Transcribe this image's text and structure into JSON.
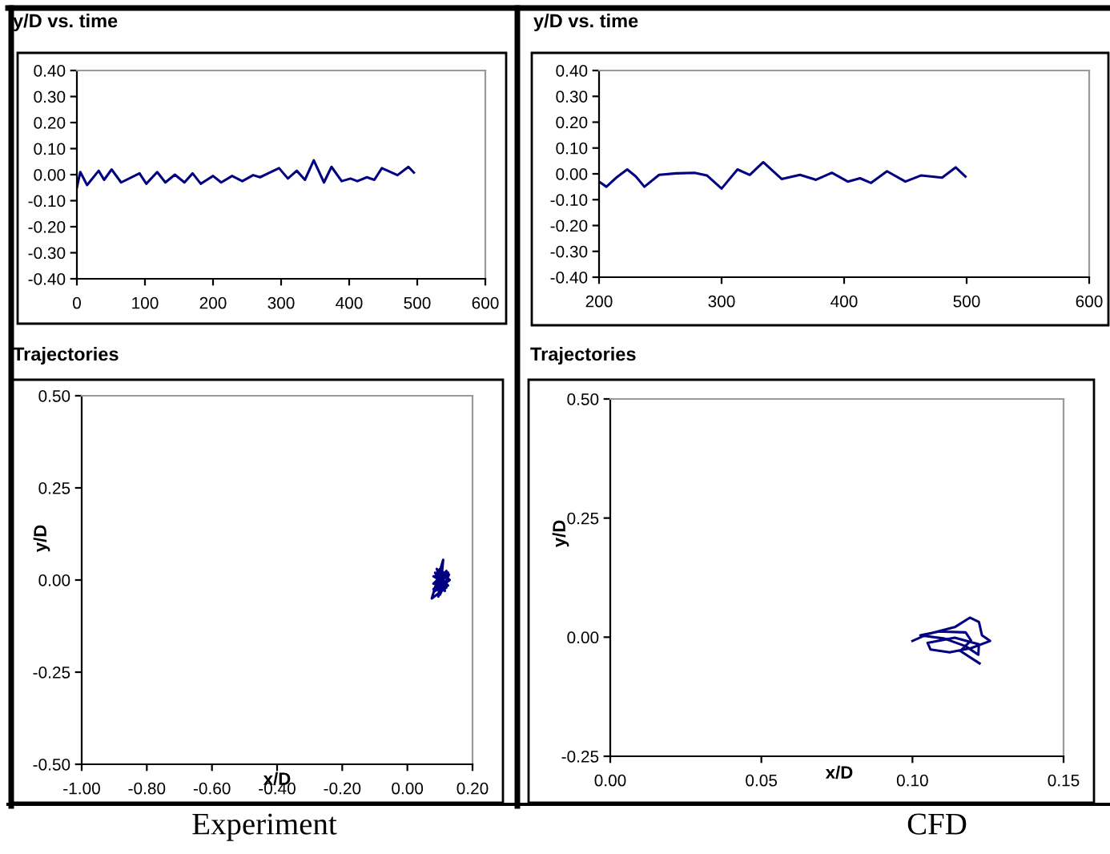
{
  "chart_data": [
    {
      "type": "line",
      "title": "y/D vs. time",
      "xlim": [
        0,
        600
      ],
      "xticks": [
        0,
        100,
        200,
        300,
        400,
        500,
        600
      ],
      "ylim": [
        -0.4,
        0.4
      ],
      "yticks": [
        {
          "value": -0.4,
          "label": "-0.40"
        },
        {
          "value": -0.3,
          "label": "-0.30"
        },
        {
          "value": -0.2,
          "label": "-0.20"
        },
        {
          "value": -0.1,
          "label": "-0.10"
        },
        {
          "value": 0,
          "label": "0.00"
        },
        {
          "value": 0.1,
          "label": "0.10"
        },
        {
          "value": 0.2,
          "label": "0.20"
        },
        {
          "value": 0.3,
          "label": "0.30"
        },
        {
          "value": 0.4,
          "label": "0.40"
        }
      ],
      "grid": false,
      "series": [
        {
          "color": "#000080",
          "x": [
            0,
            5,
            15,
            32,
            40,
            51,
            65,
            92,
            102,
            118,
            130,
            144,
            158,
            170,
            182,
            200,
            212,
            228,
            243,
            259,
            269,
            281,
            297,
            310,
            323,
            335,
            348,
            363,
            374,
            389,
            402,
            412,
            426,
            437,
            448,
            471,
            487,
            495
          ],
          "values": [
            -0.05,
            0.01,
            -0.04,
            0.015,
            -0.02,
            0.02,
            -0.03,
            0.005,
            -0.035,
            0.01,
            -0.03,
            0.0,
            -0.03,
            0.005,
            -0.035,
            -0.005,
            -0.03,
            -0.005,
            -0.025,
            -0.002,
            -0.01,
            0.005,
            0.025,
            -0.015,
            0.015,
            -0.02,
            0.055,
            -0.03,
            0.03,
            -0.025,
            -0.015,
            -0.025,
            -0.01,
            -0.02,
            0.025,
            -0.002,
            0.03,
            0.008
          ]
        }
      ]
    },
    {
      "type": "line",
      "title": "y/D vs. time",
      "xlim": [
        200,
        600
      ],
      "xticks": [
        200,
        300,
        400,
        500,
        600
      ],
      "ylim": [
        -0.4,
        0.4
      ],
      "yticks": [
        {
          "value": -0.4,
          "label": "-0.40"
        },
        {
          "value": -0.3,
          "label": "-0.30"
        },
        {
          "value": -0.2,
          "label": "-0.20"
        },
        {
          "value": -0.1,
          "label": "-0.10"
        },
        {
          "value": 0,
          "label": "0.00"
        },
        {
          "value": 0.1,
          "label": "0.10"
        },
        {
          "value": 0.2,
          "label": "0.20"
        },
        {
          "value": 0.3,
          "label": "0.30"
        },
        {
          "value": 0.4,
          "label": "0.40"
        }
      ],
      "grid": false,
      "series": [
        {
          "color": "#000080",
          "x": [
            200,
            206,
            214,
            223,
            230,
            237,
            249,
            263,
            278,
            288,
            300,
            313,
            323,
            334,
            349,
            364,
            377,
            390,
            403,
            413,
            422,
            435,
            450,
            463,
            480,
            491,
            499
          ],
          "values": [
            -0.03,
            -0.05,
            -0.015,
            0.017,
            -0.01,
            -0.05,
            -0.004,
            0.002,
            0.004,
            -0.006,
            -0.057,
            0.017,
            -0.004,
            0.045,
            -0.02,
            -0.004,
            -0.023,
            0.004,
            -0.03,
            -0.017,
            -0.035,
            0.01,
            -0.03,
            -0.006,
            -0.015,
            0.025,
            -0.01
          ]
        }
      ]
    },
    {
      "type": "line",
      "title": "Trajectories",
      "xlabel": "x/D",
      "ylabel": "y/D",
      "xlim": [
        -1,
        0.2
      ],
      "xticks": [
        {
          "value": -1,
          "label": "-1.00"
        },
        {
          "value": -0.8,
          "label": "-0.80"
        },
        {
          "value": -0.6,
          "label": "-0.60"
        },
        {
          "value": -0.4,
          "label": "-0.40"
        },
        {
          "value": -0.2,
          "label": "-0.20"
        },
        {
          "value": 0,
          "label": "0.00"
        },
        {
          "value": 0.2,
          "label": "0.20"
        }
      ],
      "ylim": [
        -0.5,
        0.5
      ],
      "yticks": [
        {
          "value": -0.5,
          "label": "-0.50"
        },
        {
          "value": -0.25,
          "label": "-0.25"
        },
        {
          "value": 0,
          "label": "0.00"
        },
        {
          "value": 0.25,
          "label": "0.25"
        },
        {
          "value": 0.5,
          "label": "0.50"
        }
      ],
      "grid": false,
      "annotations": [
        "Experiment"
      ],
      "series": [
        {
          "color": "#000080",
          "x": [
            0.1,
            0.09,
            0.12,
            0.08,
            0.125,
            0.085,
            0.13,
            0.09,
            0.12,
            0.075,
            0.11,
            0.1,
            0.128,
            0.08,
            0.12,
            0.095,
            0.105,
            0.115,
            0.09,
            0.125,
            0.085,
            0.11,
            0.1,
            0.12,
            0.08,
            0.105
          ],
          "values": [
            0.0,
            0.02,
            -0.01,
            0.01,
            0.02,
            -0.03,
            0.0,
            0.03,
            -0.02,
            -0.05,
            0.055,
            -0.04,
            0.015,
            -0.01,
            0.025,
            -0.045,
            0.04,
            -0.03,
            0.005,
            -0.015,
            0.02,
            -0.02,
            0.03,
            0.01,
            -0.025,
            0.0
          ]
        }
      ]
    },
    {
      "type": "line",
      "title": "Trajectories",
      "xlabel": "x/D",
      "ylabel": "y/D",
      "xlim": [
        0,
        0.15
      ],
      "xticks": [
        {
          "value": 0,
          "label": "0.00"
        },
        {
          "value": 0.05,
          "label": "0.05"
        },
        {
          "value": 0.1,
          "label": "0.10"
        },
        {
          "value": 0.15,
          "label": "0.15"
        }
      ],
      "ylim": [
        -0.25,
        0.5
      ],
      "yticks": [
        {
          "value": -0.25,
          "label": "-0.25"
        },
        {
          "value": 0,
          "label": "0.00"
        },
        {
          "value": 0.25,
          "label": "0.25"
        },
        {
          "value": 0.5,
          "label": "0.50"
        }
      ],
      "grid": false,
      "annotations": [
        "CFD"
      ],
      "series": [
        {
          "color": "#000080",
          "x": [
            0.1,
            0.1053,
            0.114,
            0.119,
            0.122,
            0.123,
            0.1257,
            0.1194,
            0.1123,
            0.106,
            0.105,
            0.114,
            0.122,
            0.1218,
            0.1176,
            0.1106,
            0.1026,
            0.1088,
            0.1176,
            0.1194,
            0.1158,
            0.1222
          ],
          "values": [
            -0.008,
            0.007,
            0.021,
            0.041,
            0.032,
            0.004,
            -0.008,
            -0.023,
            -0.032,
            -0.026,
            -0.012,
            -0.001,
            -0.015,
            -0.037,
            -0.019,
            -0.003,
            0.004,
            0.012,
            0.01,
            -0.007,
            -0.029,
            -0.055
          ]
        }
      ]
    }
  ]
}
